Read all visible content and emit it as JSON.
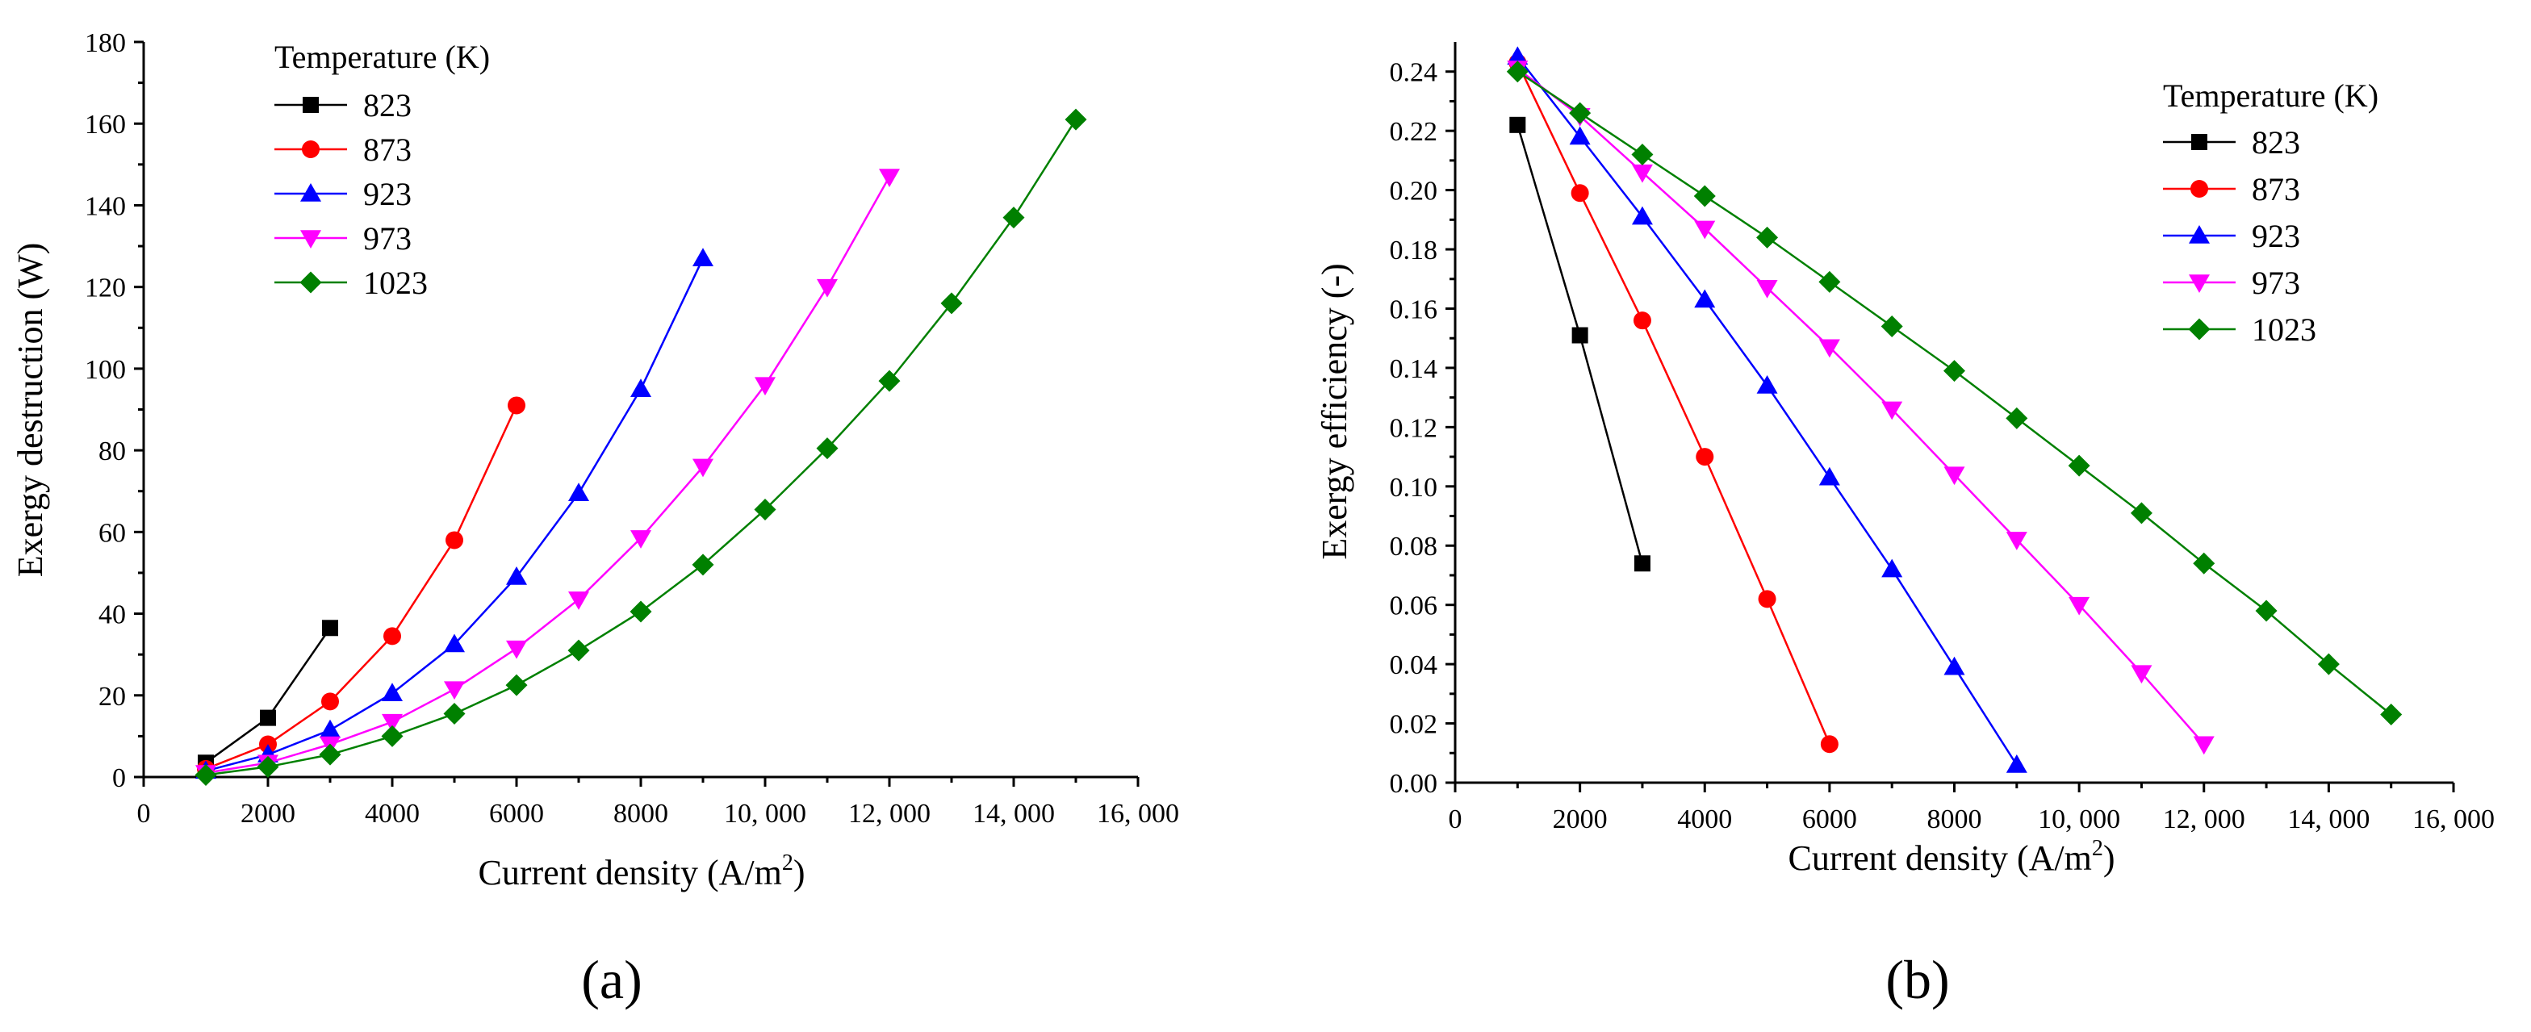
{
  "figure": {
    "panel_labels": [
      "(a)",
      "(b)"
    ]
  },
  "chart_data": [
    {
      "type": "line",
      "panel": "(a)",
      "xlabel_main": "Current density (A/m",
      "xlabel_sup": "2",
      "xlabel_end": ")",
      "ylabel": "Exergy destruction (W)",
      "xlim": [
        0,
        16000
      ],
      "ylim": [
        0,
        180
      ],
      "xticks": [
        0,
        2000,
        4000,
        6000,
        8000,
        10000,
        12000,
        14000,
        16000
      ],
      "xtick_labels": [
        "0",
        "2000",
        "4000",
        "6000",
        "8000",
        "10, 000",
        "12, 000",
        "14, 000",
        "16, 000"
      ],
      "yticks": [
        0,
        20,
        40,
        60,
        80,
        100,
        120,
        140,
        160,
        180
      ],
      "ytick_labels": [
        "0",
        "20",
        "40",
        "60",
        "80",
        "100",
        "120",
        "140",
        "160",
        "180"
      ],
      "legend_title": "Temperature (K)",
      "legend_position": "top-left",
      "series": [
        {
          "name": "823",
          "color": "#000000",
          "marker": "square",
          "x": [
            1000,
            2000,
            3000
          ],
          "y": [
            3.5,
            14.5,
            36.5
          ]
        },
        {
          "name": "873",
          "color": "#ff0000",
          "marker": "circle",
          "x": [
            1000,
            2000,
            3000,
            4000,
            5000,
            6000
          ],
          "y": [
            2.0,
            8.0,
            18.5,
            34.5,
            58.0,
            91.0
          ]
        },
        {
          "name": "923",
          "color": "#0000ff",
          "marker": "triangle-up",
          "x": [
            1000,
            2000,
            3000,
            4000,
            5000,
            6000,
            7000,
            8000,
            9000
          ],
          "y": [
            1.5,
            5.5,
            11.5,
            20.5,
            32.5,
            49.0,
            69.5,
            95.0,
            127.0
          ]
        },
        {
          "name": "973",
          "color": "#ff00ff",
          "marker": "triangle-down",
          "x": [
            1000,
            2000,
            3000,
            4000,
            5000,
            6000,
            7000,
            8000,
            9000,
            10000,
            11000,
            12000
          ],
          "y": [
            1.0,
            3.5,
            8.0,
            13.5,
            21.5,
            31.5,
            43.5,
            58.5,
            76.0,
            96.0,
            120.0,
            147.0
          ]
        },
        {
          "name": "1023",
          "color": "#008000",
          "marker": "diamond",
          "x": [
            1000,
            2000,
            3000,
            4000,
            5000,
            6000,
            7000,
            8000,
            9000,
            10000,
            11000,
            12000,
            13000,
            14000,
            15000
          ],
          "y": [
            0.5,
            2.5,
            5.5,
            10.0,
            15.5,
            22.5,
            31.0,
            40.5,
            52.0,
            65.5,
            80.5,
            97.0,
            116.0,
            137.0,
            161.0
          ]
        }
      ]
    },
    {
      "type": "line",
      "panel": "(b)",
      "xlabel_main": "Current density (A/m",
      "xlabel_sup": "2",
      "xlabel_end": ")",
      "ylabel": "Exergy efficiency (-)",
      "xlim": [
        0,
        16000
      ],
      "ylim": [
        0,
        0.25
      ],
      "xticks": [
        0,
        2000,
        4000,
        6000,
        8000,
        10000,
        12000,
        14000,
        16000
      ],
      "xtick_labels": [
        "0",
        "2000",
        "4000",
        "6000",
        "8000",
        "10, 000",
        "12, 000",
        "14, 000",
        "16, 000"
      ],
      "yticks": [
        0,
        0.02,
        0.04,
        0.06,
        0.08,
        0.1,
        0.12,
        0.14,
        0.16,
        0.18,
        0.2,
        0.22,
        0.24
      ],
      "ytick_labels": [
        "0.00",
        "0.02",
        "0.04",
        "0.06",
        "0.08",
        "0.10",
        "0.12",
        "0.14",
        "0.16",
        "0.18",
        "0.20",
        "0.22",
        "0.24"
      ],
      "legend_title": "Temperature (K)",
      "legend_position": "top-right",
      "series": [
        {
          "name": "823",
          "color": "#000000",
          "marker": "square",
          "x": [
            1000,
            2000,
            3000
          ],
          "y": [
            0.222,
            0.151,
            0.074
          ]
        },
        {
          "name": "873",
          "color": "#ff0000",
          "marker": "circle",
          "x": [
            1000,
            2000,
            3000,
            4000,
            5000,
            6000
          ],
          "y": [
            0.243,
            0.199,
            0.156,
            0.11,
            0.062,
            0.013
          ]
        },
        {
          "name": "923",
          "color": "#0000ff",
          "marker": "triangle-up",
          "x": [
            1000,
            2000,
            3000,
            4000,
            5000,
            6000,
            7000,
            8000,
            9000
          ],
          "y": [
            0.245,
            0.218,
            0.191,
            0.163,
            0.134,
            0.103,
            0.072,
            0.039,
            0.006
          ]
        },
        {
          "name": "973",
          "color": "#ff00ff",
          "marker": "triangle-down",
          "x": [
            1000,
            2000,
            3000,
            4000,
            5000,
            6000,
            7000,
            8000,
            9000,
            10000,
            11000,
            12000
          ],
          "y": [
            0.241,
            0.225,
            0.206,
            0.187,
            0.167,
            0.147,
            0.126,
            0.104,
            0.082,
            0.06,
            0.037,
            0.013
          ]
        },
        {
          "name": "1023",
          "color": "#008000",
          "marker": "diamond",
          "x": [
            1000,
            2000,
            3000,
            4000,
            5000,
            6000,
            7000,
            8000,
            9000,
            10000,
            11000,
            12000,
            13000,
            14000,
            15000
          ],
          "y": [
            0.24,
            0.226,
            0.212,
            0.198,
            0.184,
            0.169,
            0.154,
            0.139,
            0.123,
            0.107,
            0.091,
            0.074,
            0.058,
            0.04,
            0.023
          ]
        }
      ]
    }
  ]
}
